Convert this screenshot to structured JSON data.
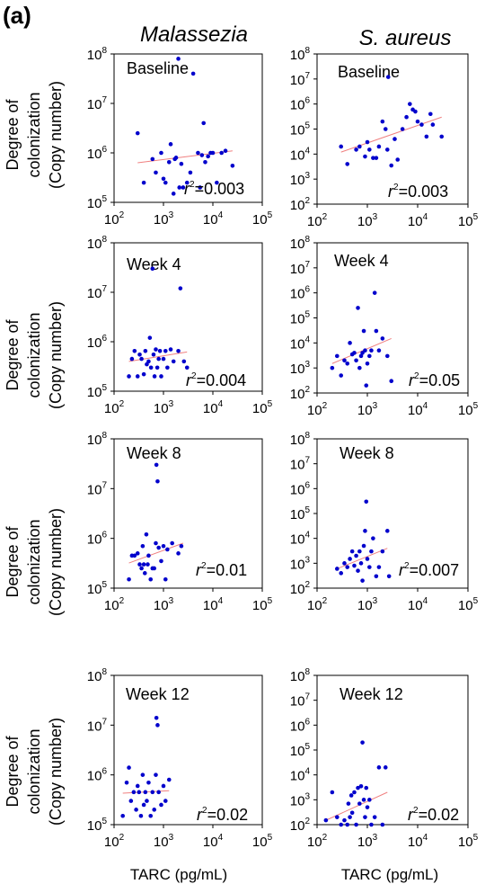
{
  "figure_label": "(a)",
  "column_titles": [
    "Malassezia",
    "S. aureus"
  ],
  "y_axis_label_lines": [
    "Degree of",
    "colonization",
    "(Copy number)"
  ],
  "x_axis_label": "TARC (pg/mL)",
  "colors": {
    "points": "#0000cc",
    "fit_line": "#f08080",
    "frame": "#000000"
  },
  "chart_data": [
    {
      "type": "scatter",
      "organism": "Malassezia",
      "panel_label": "Baseline",
      "r2_text": "=0.003",
      "xscale": "log",
      "yscale": "log",
      "xlim": [
        100,
        100000
      ],
      "ylim": [
        100000,
        100000000
      ],
      "xtick_exponents": [
        2,
        3,
        4,
        5
      ],
      "ytick_exponents": [
        5,
        6,
        7,
        8
      ],
      "fit": {
        "x": [
          300,
          25000
        ],
        "y": [
          630000,
          1100000
        ]
      },
      "points": [
        [
          300,
          2500000
        ],
        [
          400,
          250000
        ],
        [
          600,
          750000
        ],
        [
          700,
          400000
        ],
        [
          900,
          1000000
        ],
        [
          1000,
          300000
        ],
        [
          1100,
          250000
        ],
        [
          1300,
          650000
        ],
        [
          1400,
          1500000
        ],
        [
          1600,
          150000
        ],
        [
          1700,
          750000
        ],
        [
          1800,
          800000
        ],
        [
          2000,
          80000000
        ],
        [
          2100,
          200000
        ],
        [
          2300,
          600000
        ],
        [
          2500,
          200000
        ],
        [
          3000,
          250000
        ],
        [
          3500,
          400000
        ],
        [
          4000,
          40000000
        ],
        [
          5000,
          1000000
        ],
        [
          5500,
          200000
        ],
        [
          6000,
          900000
        ],
        [
          6500,
          4000000
        ],
        [
          7000,
          650000
        ],
        [
          8000,
          850000
        ],
        [
          9000,
          1000000
        ],
        [
          10000,
          1000000
        ],
        [
          12000,
          250000
        ],
        [
          15000,
          1000000
        ],
        [
          18000,
          1100000
        ],
        [
          25000,
          550000
        ]
      ]
    },
    {
      "type": "scatter",
      "organism": "S. aureus",
      "panel_label": "Baseline",
      "r2_text": "=0.003",
      "xscale": "log",
      "yscale": "log",
      "xlim": [
        100,
        100000
      ],
      "ylim": [
        100,
        100000000
      ],
      "xtick_exponents": [
        2,
        3,
        4,
        5
      ],
      "ytick_exponents": [
        2,
        3,
        4,
        5,
        6,
        7,
        8
      ],
      "fit": {
        "x": [
          300,
          30000
        ],
        "y": [
          12000,
          300000
        ]
      },
      "points": [
        [
          300,
          20000
        ],
        [
          400,
          4000
        ],
        [
          600,
          15000
        ],
        [
          700,
          20000
        ],
        [
          900,
          8000
        ],
        [
          1000,
          30000
        ],
        [
          1100,
          15000
        ],
        [
          1300,
          7000
        ],
        [
          1500,
          7000
        ],
        [
          1700,
          20000
        ],
        [
          2000,
          200000
        ],
        [
          2300,
          100000
        ],
        [
          2500,
          15000
        ],
        [
          2600,
          12000000
        ],
        [
          3000,
          3500
        ],
        [
          3500,
          40000
        ],
        [
          4000,
          6000
        ],
        [
          5000,
          100000
        ],
        [
          6000,
          300000
        ],
        [
          7000,
          1000000
        ],
        [
          8000,
          600000
        ],
        [
          9000,
          500000
        ],
        [
          10000,
          200000
        ],
        [
          12000,
          150000
        ],
        [
          15000,
          50000
        ],
        [
          18000,
          400000
        ],
        [
          20000,
          150000
        ],
        [
          30000,
          50000
        ]
      ]
    },
    {
      "type": "scatter",
      "organism": "Malassezia",
      "panel_label": "Week 4",
      "r2_text": "=0.004",
      "xscale": "log",
      "yscale": "log",
      "xlim": [
        100,
        100000
      ],
      "ylim": [
        100000,
        100000000
      ],
      "xtick_exponents": [
        2,
        3,
        4,
        5
      ],
      "ytick_exponents": [
        5,
        6,
        7,
        8
      ],
      "fit": {
        "x": [
          200,
          3000
        ],
        "y": [
          400000,
          620000
        ]
      },
      "points": [
        [
          200,
          200000
        ],
        [
          230,
          450000
        ],
        [
          260,
          650000
        ],
        [
          300,
          200000
        ],
        [
          330,
          550000
        ],
        [
          360,
          450000
        ],
        [
          400,
          220000
        ],
        [
          430,
          650000
        ],
        [
          460,
          350000
        ],
        [
          500,
          400000
        ],
        [
          530,
          1200000
        ],
        [
          560,
          300000
        ],
        [
          600,
          30000000
        ],
        [
          630,
          550000
        ],
        [
          660,
          200000
        ],
        [
          700,
          700000
        ],
        [
          750,
          300000
        ],
        [
          800,
          450000
        ],
        [
          850,
          650000
        ],
        [
          900,
          200000
        ],
        [
          1000,
          450000
        ],
        [
          1100,
          650000
        ],
        [
          1200,
          300000
        ],
        [
          1400,
          700000
        ],
        [
          1600,
          400000
        ],
        [
          2000,
          650000
        ],
        [
          2200,
          12000000
        ],
        [
          2600,
          400000
        ],
        [
          3000,
          300000
        ]
      ]
    },
    {
      "type": "scatter",
      "organism": "S. aureus",
      "panel_label": "Week 4",
      "r2_text": "=0.05",
      "xscale": "log",
      "yscale": "log",
      "xlim": [
        100,
        100000
      ],
      "ylim": [
        100,
        100000000
      ],
      "xtick_exponents": [
        2,
        3,
        4,
        5
      ],
      "ytick_exponents": [
        2,
        3,
        4,
        5,
        6,
        7,
        8
      ],
      "fit": {
        "x": [
          200,
          3000
        ],
        "y": [
          1500,
          15000
        ]
      },
      "points": [
        [
          200,
          1000
        ],
        [
          250,
          3000
        ],
        [
          300,
          500
        ],
        [
          350,
          2000
        ],
        [
          400,
          1500
        ],
        [
          450,
          10000
        ],
        [
          500,
          3500
        ],
        [
          550,
          4000
        ],
        [
          600,
          2000
        ],
        [
          650,
          250000
        ],
        [
          700,
          1000
        ],
        [
          750,
          3000
        ],
        [
          800,
          4000
        ],
        [
          850,
          30000
        ],
        [
          900,
          5000
        ],
        [
          950,
          200
        ],
        [
          1000,
          1500
        ],
        [
          1100,
          3000
        ],
        [
          1200,
          5000
        ],
        [
          1400,
          1000000
        ],
        [
          1500,
          30000
        ],
        [
          1700,
          5000
        ],
        [
          2000,
          15000
        ],
        [
          2500,
          3000
        ],
        [
          3000,
          300
        ]
      ]
    },
    {
      "type": "scatter",
      "organism": "Malassezia",
      "panel_label": "Week 8",
      "r2_text": "=0.01",
      "xscale": "log",
      "yscale": "log",
      "xlim": [
        100,
        100000
      ],
      "ylim": [
        100000,
        100000000
      ],
      "xtick_exponents": [
        2,
        3,
        4,
        5
      ],
      "ytick_exponents": [
        5,
        6,
        7,
        8
      ],
      "fit": {
        "x": [
          200,
          2500
        ],
        "y": [
          320000,
          800000
        ]
      },
      "points": [
        [
          200,
          150000
        ],
        [
          230,
          450000
        ],
        [
          260,
          450000
        ],
        [
          300,
          500000
        ],
        [
          330,
          300000
        ],
        [
          360,
          250000
        ],
        [
          380,
          700000
        ],
        [
          400,
          300000
        ],
        [
          420,
          200000
        ],
        [
          450,
          1200000
        ],
        [
          480,
          300000
        ],
        [
          500,
          450000
        ],
        [
          550,
          150000
        ],
        [
          600,
          250000
        ],
        [
          650,
          250000
        ],
        [
          700,
          800000
        ],
        [
          720,
          30000000
        ],
        [
          760,
          14000000
        ],
        [
          800,
          650000
        ],
        [
          900,
          350000
        ],
        [
          1000,
          700000
        ],
        [
          1100,
          150000
        ],
        [
          1200,
          600000
        ],
        [
          1500,
          800000
        ],
        [
          2000,
          500000
        ],
        [
          2300,
          700000
        ]
      ]
    },
    {
      "type": "scatter",
      "organism": "S. aureus",
      "panel_label": "Week 8",
      "r2_text": "=0.007",
      "xscale": "log",
      "yscale": "log",
      "xlim": [
        100,
        100000
      ],
      "ylim": [
        100,
        100000000
      ],
      "xtick_exponents": [
        2,
        3,
        4,
        5
      ],
      "ytick_exponents": [
        2,
        3,
        4,
        5,
        6,
        7,
        8
      ],
      "fit": {
        "x": [
          250,
          2500
        ],
        "y": [
          600,
          4000
        ]
      },
      "points": [
        [
          250,
          600
        ],
        [
          300,
          400
        ],
        [
          350,
          1000
        ],
        [
          400,
          700
        ],
        [
          450,
          1500
        ],
        [
          500,
          3000
        ],
        [
          550,
          800
        ],
        [
          600,
          2000
        ],
        [
          650,
          500
        ],
        [
          700,
          3000
        ],
        [
          750,
          1000
        ],
        [
          800,
          200
        ],
        [
          850,
          5000
        ],
        [
          900,
          20000
        ],
        [
          950,
          300000
        ],
        [
          1000,
          1500
        ],
        [
          1100,
          700
        ],
        [
          1200,
          3000
        ],
        [
          1300,
          10000
        ],
        [
          1500,
          300
        ],
        [
          1700,
          700
        ],
        [
          2000,
          3000
        ],
        [
          2500,
          20000
        ],
        [
          2700,
          300
        ]
      ]
    },
    {
      "type": "scatter",
      "organism": "Malassezia",
      "panel_label": "Week 12",
      "r2_text": "=0.02",
      "xscale": "log",
      "yscale": "log",
      "xlim": [
        100,
        100000
      ],
      "ylim": [
        100000,
        100000000
      ],
      "xtick_exponents": [
        2,
        3,
        4,
        5
      ],
      "ytick_exponents": [
        5,
        6,
        7,
        8
      ],
      "fit": {
        "x": [
          150,
          1300
        ],
        "y": [
          430000,
          480000
        ]
      },
      "points": [
        [
          150,
          150000
        ],
        [
          180,
          700000
        ],
        [
          200,
          1400000
        ],
        [
          220,
          300000
        ],
        [
          250,
          450000
        ],
        [
          280,
          200000
        ],
        [
          300,
          600000
        ],
        [
          320,
          450000
        ],
        [
          350,
          150000
        ],
        [
          380,
          1000000
        ],
        [
          400,
          250000
        ],
        [
          430,
          450000
        ],
        [
          460,
          300000
        ],
        [
          500,
          700000
        ],
        [
          550,
          150000
        ],
        [
          600,
          450000
        ],
        [
          650,
          200000
        ],
        [
          700,
          1000000
        ],
        [
          720,
          14000000
        ],
        [
          760,
          10000000
        ],
        [
          800,
          450000
        ],
        [
          900,
          250000
        ],
        [
          1000,
          600000
        ],
        [
          1100,
          300000
        ],
        [
          1300,
          800000
        ]
      ]
    },
    {
      "type": "scatter",
      "organism": "S. aureus",
      "panel_label": "Week 12",
      "r2_text": "=0.02",
      "xscale": "log",
      "yscale": "log",
      "xlim": [
        100,
        100000
      ],
      "ylim": [
        100,
        100000000
      ],
      "xtick_exponents": [
        2,
        3,
        4,
        5
      ],
      "ytick_exponents": [
        2,
        3,
        4,
        5,
        6,
        7,
        8
      ],
      "fit": {
        "x": [
          150,
          2500
        ],
        "y": [
          150,
          2000
        ]
      },
      "points": [
        [
          150,
          150
        ],
        [
          200,
          2000
        ],
        [
          250,
          200
        ],
        [
          300,
          100
        ],
        [
          350,
          150
        ],
        [
          400,
          100
        ],
        [
          420,
          700
        ],
        [
          450,
          200
        ],
        [
          480,
          1500
        ],
        [
          500,
          300
        ],
        [
          550,
          2000
        ],
        [
          600,
          100
        ],
        [
          650,
          3000
        ],
        [
          700,
          700
        ],
        [
          750,
          3500
        ],
        [
          800,
          200000
        ],
        [
          850,
          1000
        ],
        [
          900,
          200
        ],
        [
          950,
          3000
        ],
        [
          1000,
          500
        ],
        [
          1100,
          1000
        ],
        [
          1200,
          100
        ],
        [
          1400,
          200
        ],
        [
          1700,
          20000
        ],
        [
          2000,
          100
        ],
        [
          2300,
          20000
        ]
      ]
    }
  ]
}
